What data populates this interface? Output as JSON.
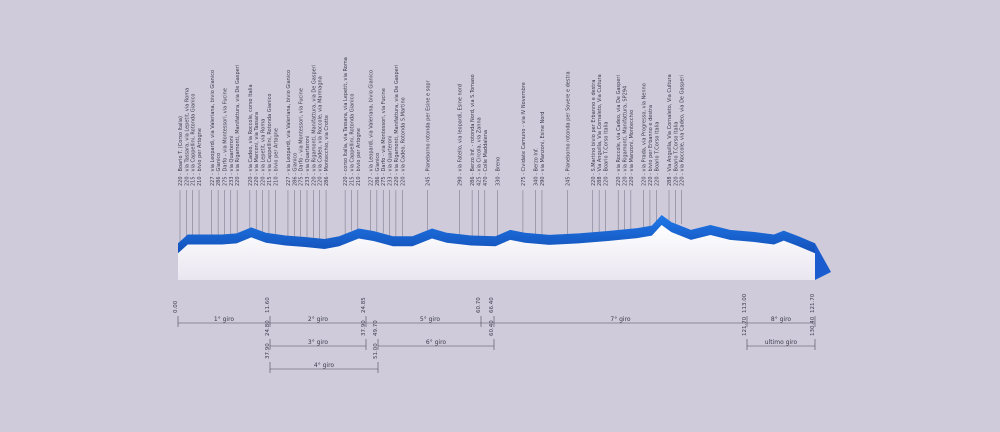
{
  "chart_data": {
    "type": "area",
    "x_unit": "km",
    "y_unit": "m",
    "ylim": [
      150,
      320
    ],
    "xlim": [
      0,
      130.4
    ],
    "profile": [
      {
        "x": 0,
        "y": 220
      },
      {
        "x": 2,
        "y": 245
      },
      {
        "x": 9,
        "y": 245
      },
      {
        "x": 12,
        "y": 248
      },
      {
        "x": 15,
        "y": 265
      },
      {
        "x": 18,
        "y": 250
      },
      {
        "x": 22,
        "y": 242
      },
      {
        "x": 26,
        "y": 238
      },
      {
        "x": 30,
        "y": 232
      },
      {
        "x": 33,
        "y": 240
      },
      {
        "x": 37,
        "y": 262
      },
      {
        "x": 40,
        "y": 255
      },
      {
        "x": 44,
        "y": 240
      },
      {
        "x": 48,
        "y": 240
      },
      {
        "x": 52,
        "y": 262
      },
      {
        "x": 55,
        "y": 250
      },
      {
        "x": 60,
        "y": 242
      },
      {
        "x": 65,
        "y": 240
      },
      {
        "x": 68,
        "y": 258
      },
      {
        "x": 71,
        "y": 250
      },
      {
        "x": 76,
        "y": 244
      },
      {
        "x": 82,
        "y": 248
      },
      {
        "x": 88,
        "y": 255
      },
      {
        "x": 94,
        "y": 263
      },
      {
        "x": 97,
        "y": 270
      },
      {
        "x": 99,
        "y": 300
      },
      {
        "x": 101,
        "y": 280
      },
      {
        "x": 105,
        "y": 258
      },
      {
        "x": 109,
        "y": 272
      },
      {
        "x": 113,
        "y": 258
      },
      {
        "x": 118,
        "y": 252
      },
      {
        "x": 122,
        "y": 245
      },
      {
        "x": 124,
        "y": 256
      },
      {
        "x": 127,
        "y": 240
      },
      {
        "x": 130.4,
        "y": 220
      }
    ],
    "labels": [
      {
        "x": 0.0,
        "text": "220 - Boario T. (Corso Italia)"
      },
      {
        "x": 1.3,
        "text": "220 - via Tassara, via Lepetit, via Roma"
      },
      {
        "x": 2.6,
        "text": "215 - via Cappellini, Rotonda Gianico"
      },
      {
        "x": 3.9,
        "text": "210 - bivio per Artogne"
      },
      {
        "x": 6.5,
        "text": "227 - via Leopardi, via Valeriana, bivio Gianico"
      },
      {
        "x": 7.8,
        "text": "286 - Gianico"
      },
      {
        "x": 9.1,
        "text": "275 - Darfo - via Montessori, via Fucine"
      },
      {
        "x": 10.4,
        "text": "233 - via Quarteroni"
      },
      {
        "x": 11.7,
        "text": "220 - via Rigamonti, Manifattura, via De Gasperi"
      },
      {
        "x": 14.3,
        "text": "220 - via Cadeo, via Roccole, corso Italia"
      },
      {
        "x": 15.6,
        "text": "220 - via Marconi, via Tassara"
      },
      {
        "x": 16.9,
        "text": "220 - via Lepetit, via Roma"
      },
      {
        "x": 18.2,
        "text": "215 - via Cappellini, Rotonda Gianico"
      },
      {
        "x": 19.5,
        "text": "210 - bivio per Artogne"
      },
      {
        "x": 22.1,
        "text": "227 - via Leopardi, via Valeriana, bivio Gianico"
      },
      {
        "x": 23.4,
        "text": "286 - Gianico"
      },
      {
        "x": 24.7,
        "text": "275 - Darfo - via Montessori, via Fucine"
      },
      {
        "x": 26.0,
        "text": "233 - via Quarteroni"
      },
      {
        "x": 27.3,
        "text": "220 - via Rigamonti, Manifattura, via De Gasperi"
      },
      {
        "x": 28.6,
        "text": "220 - via Cadeo, via Roccole, via Marmagna"
      },
      {
        "x": 29.9,
        "text": "286 - Montecchio, via Crotte"
      },
      {
        "x": 33.8,
        "text": "220 - corso Italia, via Tassara, via Lepetit, via Roma"
      },
      {
        "x": 35.1,
        "text": "215 - via Cappellini, Rotonda Gianico"
      },
      {
        "x": 36.4,
        "text": "210 - bivio per Artogne"
      },
      {
        "x": 39.0,
        "text": "227 - via Leopardi, via Valeriana, bivio Gianico"
      },
      {
        "x": 40.3,
        "text": "286 - Gianico"
      },
      {
        "x": 41.6,
        "text": "275 - Darfo - via Montessori, via Fucine"
      },
      {
        "x": 42.9,
        "text": "233 - via Quarteroni"
      },
      {
        "x": 44.2,
        "text": "220 - via Rigamonti, Manifattura, via De Gasperi"
      },
      {
        "x": 45.5,
        "text": "220 - via Cadeo, Rotonda S.Martino"
      },
      {
        "x": 50.7,
        "text": "245 - Pianeborno rotonda per Esine e sopr"
      },
      {
        "x": 57.2,
        "text": "290 - via Fatello, via leopardi, Esine nord"
      },
      {
        "x": 59.8,
        "text": "286 - Berzo Inf. - rotonda Nord, via S.Tomaso"
      },
      {
        "x": 61.1,
        "text": "425 - via Circola, via Zanna"
      },
      {
        "x": 62.4,
        "text": "470 - Colle Maddalena"
      },
      {
        "x": 65.0,
        "text": "330 - Breno"
      },
      {
        "x": 70.2,
        "text": "275 - Cividate Camuno - via IV Novembre"
      },
      {
        "x": 72.8,
        "text": "340 - Berzo Inf."
      },
      {
        "x": 74.1,
        "text": "290 - via Manzoni, Esine Nord"
      },
      {
        "x": 79.3,
        "text": "245 - Pianeborno rotonda per Sovere e destra"
      },
      {
        "x": 84.5,
        "text": "220 - S.Martino bivio per Erbanno e destra"
      },
      {
        "x": 85.8,
        "text": "288 - Via Anguilla, Via Cornaleto, Via Cultura"
      },
      {
        "x": 87.1,
        "text": "220 - Boario T.Corso Italia"
      },
      {
        "x": 89.7,
        "text": "220 - via Roccole, via Cadeo, via De Gasperi"
      },
      {
        "x": 91.0,
        "text": "220 - via Rigamonti, Manifattura, SP294"
      },
      {
        "x": 92.3,
        "text": "220 - via Manzoni, Montecchio"
      },
      {
        "x": 94.9,
        "text": "220 - via Prada, via Progresso, via Nenno"
      },
      {
        "x": 96.2,
        "text": "220 - bivio per Erbanno e destra"
      },
      {
        "x": 97.5,
        "text": "220 - Boario T.Corso Italia"
      },
      {
        "x": 100.1,
        "text": "288 - Via Anguilla, Via Cornaleto, Via Cultura"
      },
      {
        "x": 101.4,
        "text": "220 - Boario T.Corso Italia"
      },
      {
        "x": 102.7,
        "text": "220 - via Roccole, via Cadeo, via De Gasperi"
      }
    ],
    "laps_row1": [
      {
        "start": "0.00",
        "end": "11.60",
        "name": "1° giro",
        "x0": 0.0,
        "x1": 11.6
      },
      {
        "start": "11.60",
        "end": "24.85",
        "name": "2° giro",
        "x0": 11.6,
        "x1": 24.85
      },
      {
        "start": "24.85",
        "end": "60.70",
        "name": "5° giro",
        "x0": 24.85,
        "x1": 60.7
      },
      {
        "start": "60.70",
        "end": "113.00",
        "name": "7° giro",
        "x0": 60.7,
        "x1": 113.0
      },
      {
        "start": "113.00",
        "end": "121.70",
        "name": "8° giro",
        "x0": 113.0,
        "x1": 121.7
      }
    ],
    "laps_row1_marks": [
      "0.00",
      "11.60",
      "24.85",
      "60.70",
      "66.40",
      "113.00",
      "121.70"
    ],
    "laps_row2": [
      {
        "start": "24.80",
        "end": "37.90",
        "name": "3° giro",
        "x0": 11.6,
        "x1": 24.8
      },
      {
        "start": "37.90",
        "end": "60.40",
        "name": "6° giro",
        "x0": 24.8,
        "x1": 60.7
      },
      {
        "start": "121.70",
        "end": "130.40",
        "name": "ultimo giro",
        "x0": 113.0,
        "x1": 121.7
      }
    ],
    "laps_row2_marks": [
      "24.80",
      "37.90",
      "49.70",
      "60.40",
      "121.70",
      "130.40"
    ],
    "laps_row3": [
      {
        "start": "37.90",
        "end": "51.00",
        "name": "4° giro"
      }
    ]
  },
  "colors": {
    "profile_top": "#1a6fe0",
    "profile_side": "#1855c0",
    "base_light": "#f4f2f8",
    "line": "#4a4a5a"
  }
}
